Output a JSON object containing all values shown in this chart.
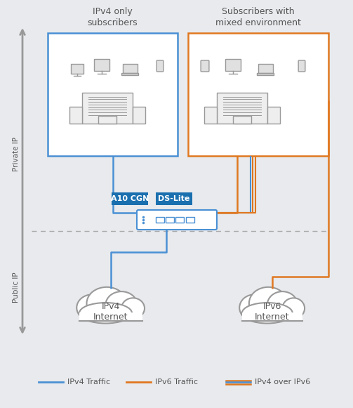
{
  "bg_color": "#e8eaed",
  "box1_title": "IPv4 only\nsubscribers",
  "box2_title": "Subscribers with\nmixed environment",
  "box1_color": "#3a8fd4",
  "box2_color": "#e07820",
  "device_color": "#999999",
  "a10cgn_label": "A10 CGN",
  "dslite_label": "DS-Lite",
  "label_bg": "#1a6faf",
  "cloud1_label": "IPv4\nInternet",
  "cloud2_label": "IPv6\nInternet",
  "private_ip_label": "Private IP",
  "public_ip_label": "Public IP",
  "legend_ipv4": "IPv4 Traffic",
  "legend_ipv6": "IPv6 Traffic",
  "legend_ipv4over6": "IPv4 over IPv6",
  "blue": "#4a90d4",
  "orange": "#e07820",
  "text_color": "#555555",
  "white": "#ffffff",
  "arrow_gray": "#999999"
}
